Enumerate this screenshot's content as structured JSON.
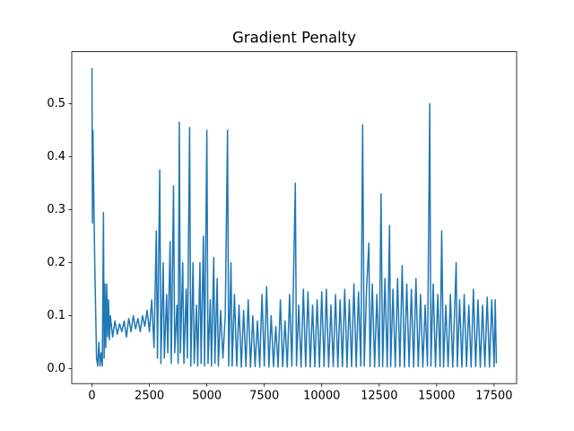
{
  "chart_data": {
    "type": "line",
    "title": "Gradient Penalty",
    "color": "#1f77b4",
    "grid": false,
    "xlim": [
      -880,
      18480
    ],
    "ylim": [
      -0.028,
      0.598
    ],
    "xticks": [
      0,
      2500,
      5000,
      7500,
      10000,
      12500,
      15000,
      17500
    ],
    "yticks": [
      {
        "value": 0,
        "label": "0.0"
      },
      0.1,
      0.2,
      0.3,
      0.4,
      0.5
    ],
    "x": [
      0,
      20,
      40,
      120,
      200,
      250,
      300,
      350,
      400,
      450,
      500,
      530,
      560,
      600,
      640,
      680,
      720,
      760,
      800,
      900,
      1000,
      1100,
      1200,
      1300,
      1400,
      1500,
      1600,
      1700,
      1800,
      1900,
      2000,
      2100,
      2200,
      2300,
      2400,
      2500,
      2600,
      2700,
      2800,
      2850,
      2950,
      3000,
      3100,
      3150,
      3250,
      3300,
      3400,
      3450,
      3550,
      3600,
      3700,
      3750,
      3800,
      3850,
      3950,
      4000,
      4100,
      4150,
      4250,
      4300,
      4400,
      4450,
      4550,
      4600,
      4700,
      4750,
      4850,
      4900,
      5000,
      5050,
      5150,
      5200,
      5300,
      5350,
      5450,
      5500,
      5600,
      5700,
      5800,
      5900,
      5950,
      6050,
      6100,
      6200,
      6300,
      6400,
      6500,
      6600,
      6700,
      6800,
      6900,
      7000,
      7100,
      7200,
      7300,
      7400,
      7500,
      7600,
      7700,
      7800,
      7900,
      8000,
      8100,
      8200,
      8300,
      8400,
      8500,
      8600,
      8700,
      8850,
      8900,
      9000,
      9100,
      9200,
      9300,
      9400,
      9500,
      9600,
      9700,
      9800,
      9900,
      10000,
      10100,
      10200,
      10300,
      10400,
      10500,
      10600,
      10700,
      10800,
      10900,
      11000,
      11100,
      11200,
      11300,
      11400,
      11500,
      11600,
      11700,
      11780,
      11850,
      11950,
      12050,
      12100,
      12200,
      12300,
      12400,
      12500,
      12580,
      12650,
      12750,
      12850,
      12950,
      13000,
      13100,
      13200,
      13300,
      13400,
      13500,
      13600,
      13700,
      13800,
      13900,
      14000,
      14100,
      14200,
      14300,
      14400,
      14500,
      14600,
      14700,
      14750,
      14850,
      14950,
      15050,
      15150,
      15220,
      15300,
      15400,
      15500,
      15600,
      15700,
      15850,
      15900,
      16000,
      16100,
      16200,
      16300,
      16400,
      16500,
      16600,
      16700,
      16800,
      16900,
      17000,
      17100,
      17200,
      17300,
      17400,
      17500,
      17550,
      17600
    ],
    "values": [
      0.567,
      0.275,
      0.45,
      0.2,
      0.02,
      0.005,
      0.05,
      0.005,
      0.03,
      0.005,
      0.295,
      0.02,
      0.16,
      0.04,
      0.16,
      0.06,
      0.13,
      0.055,
      0.1,
      0.06,
      0.09,
      0.065,
      0.085,
      0.07,
      0.09,
      0.06,
      0.095,
      0.07,
      0.1,
      0.075,
      0.095,
      0.07,
      0.1,
      0.08,
      0.11,
      0.07,
      0.13,
      0.04,
      0.26,
      0.02,
      0.375,
      0.01,
      0.2,
      0.02,
      0.14,
      0.03,
      0.24,
      0.01,
      0.345,
      0.03,
      0.12,
      0.01,
      0.465,
      0.03,
      0.2,
      0.01,
      0.15,
      0.02,
      0.455,
      0.005,
      0.2,
      0.01,
      0.12,
      0.005,
      0.2,
      0.01,
      0.25,
      0.005,
      0.45,
      0.01,
      0.13,
      0.005,
      0.21,
      0.01,
      0.17,
      0.005,
      0.11,
      0.02,
      0.1,
      0.45,
      0.005,
      0.2,
      0.005,
      0.14,
      0.005,
      0.12,
      0.003,
      0.11,
      0.004,
      0.13,
      0.003,
      0.1,
      0.004,
      0.09,
      0.003,
      0.14,
      0.005,
      0.155,
      0.003,
      0.1,
      0.004,
      0.08,
      0.003,
      0.13,
      0.004,
      0.09,
      0.003,
      0.14,
      0.005,
      0.35,
      0.005,
      0.12,
      0.003,
      0.15,
      0.004,
      0.145,
      0.003,
      0.12,
      0.004,
      0.13,
      0.003,
      0.145,
      0.004,
      0.15,
      0.003,
      0.12,
      0.004,
      0.14,
      0.003,
      0.13,
      0.004,
      0.15,
      0.003,
      0.13,
      0.004,
      0.16,
      0.003,
      0.145,
      0.005,
      0.46,
      0.005,
      0.15,
      0.237,
      0.004,
      0.16,
      0.003,
      0.14,
      0.004,
      0.33,
      0.004,
      0.17,
      0.003,
      0.27,
      0.004,
      0.15,
      0.003,
      0.17,
      0.004,
      0.195,
      0.003,
      0.16,
      0.004,
      0.15,
      0.003,
      0.17,
      0.004,
      0.14,
      0.003,
      0.12,
      0.005,
      0.5,
      0.005,
      0.16,
      0.003,
      0.14,
      0.004,
      0.26,
      0.003,
      0.12,
      0.004,
      0.14,
      0.003,
      0.2,
      0.004,
      0.13,
      0.003,
      0.14,
      0.004,
      0.12,
      0.003,
      0.15,
      0.004,
      0.13,
      0.003,
      0.12,
      0.004,
      0.135,
      0.003,
      0.13,
      0.004,
      0.13,
      0.01
    ]
  }
}
